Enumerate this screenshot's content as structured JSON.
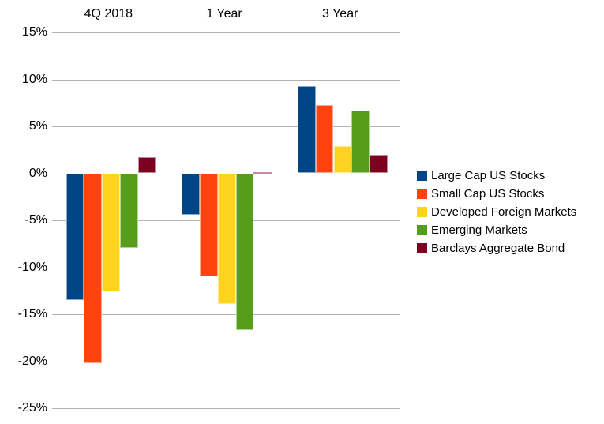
{
  "chart_data": {
    "type": "bar",
    "title": "",
    "xlabel": "",
    "ylabel": "",
    "categories": [
      "4Q 2018",
      "1 Year",
      "3 Year"
    ],
    "series": [
      {
        "name": "Large Cap US Stocks",
        "color": "#004586",
        "values": [
          -13.5,
          -4.4,
          9.3
        ]
      },
      {
        "name": "Small Cap US Stocks",
        "color": "#FF420E",
        "values": [
          -20.2,
          -11.0,
          7.3
        ]
      },
      {
        "name": "Developed Foreign Markets",
        "color": "#FFD320",
        "values": [
          -12.6,
          -13.9,
          2.9
        ]
      },
      {
        "name": "Emerging Markets",
        "color": "#579D1C",
        "values": [
          -7.9,
          -16.7,
          6.7
        ]
      },
      {
        "name": "Barclays Aggregate Bond",
        "color": "#7E0021",
        "values": [
          1.7,
          0.1,
          2.0
        ]
      }
    ],
    "y_axis": {
      "ticks": [
        15,
        10,
        5,
        0,
        -5,
        -10,
        -15,
        -20,
        -25
      ],
      "tick_labels": [
        "15%",
        "10%",
        "5%",
        "0%",
        "-5%",
        "-10%",
        "-15%",
        "-20%",
        "-25%"
      ],
      "range": [
        -25,
        15
      ],
      "unit": "%"
    },
    "grid": true,
    "legend_position": "right",
    "colors": {
      "gridline": "#b3b3b3",
      "text": "#000000",
      "background": "#ffffff"
    }
  }
}
